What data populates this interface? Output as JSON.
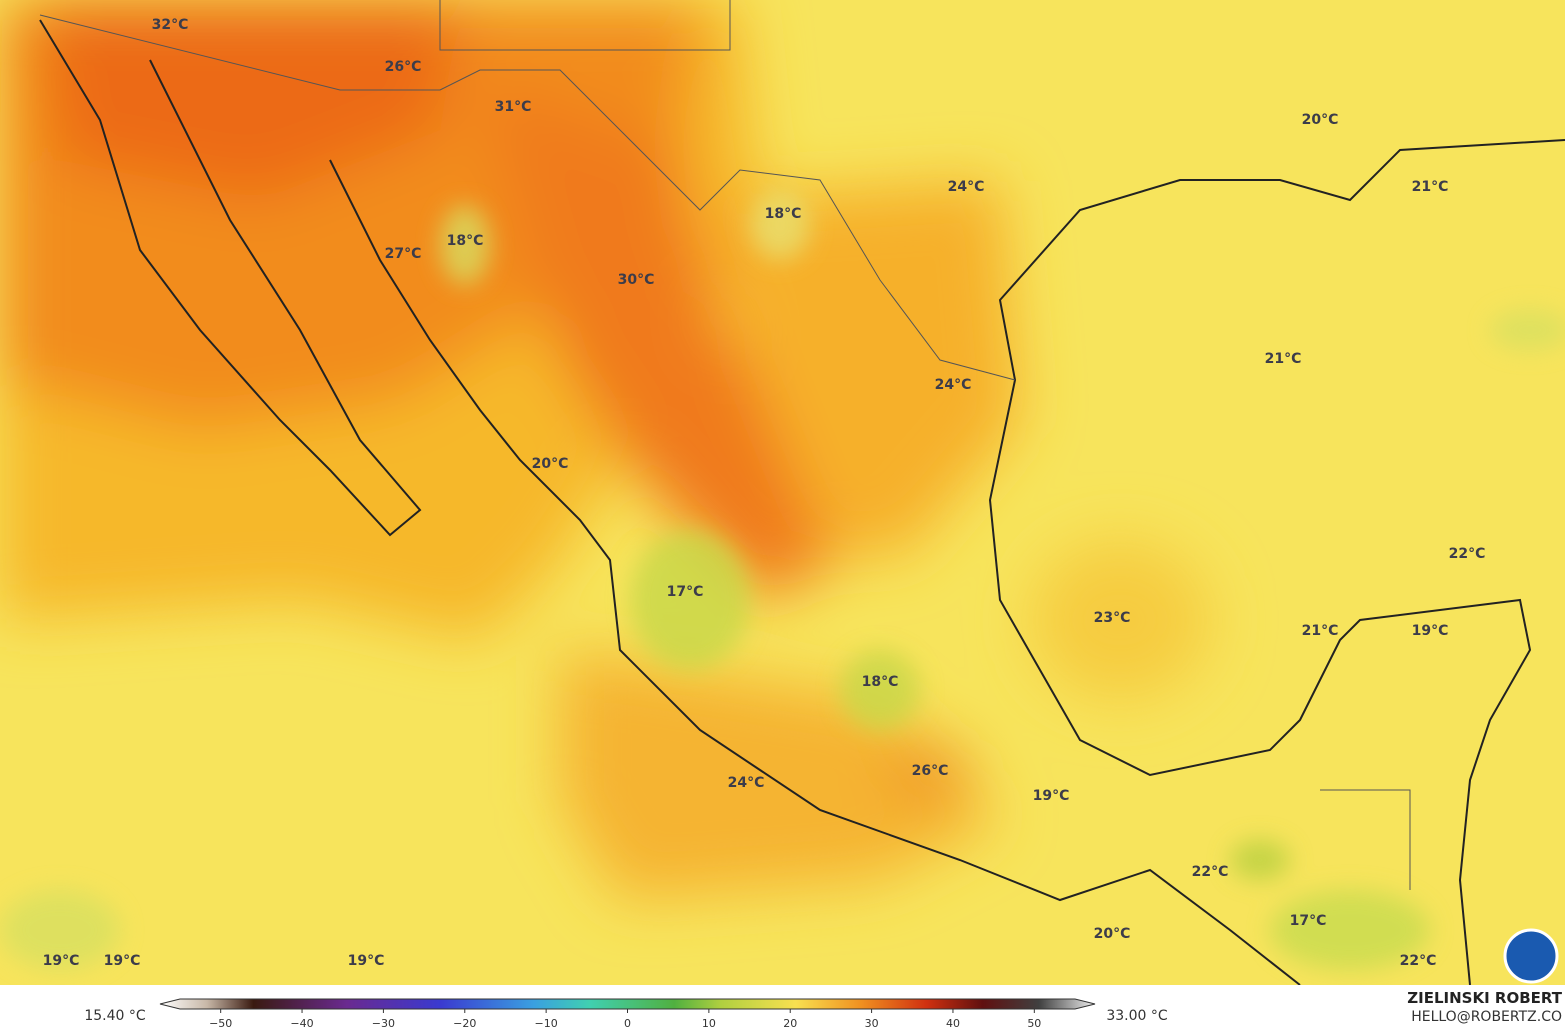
{
  "map": {
    "labels": [
      "32°C",
      "26°C",
      "31°C",
      "20°C",
      "24°C",
      "21°C",
      "18°C",
      "18°C",
      "27°C",
      "30°C",
      "21°C",
      "24°C",
      "20°C",
      "22°C",
      "17°C",
      "23°C",
      "21°C",
      "19°C",
      "18°C",
      "26°C",
      "24°C",
      "19°C",
      "22°C",
      "17°C",
      "20°C",
      "19°C",
      "19°C",
      "19°C",
      "22°C"
    ]
  },
  "colorbar": {
    "min_label": "15.40 °C",
    "max_label": "33.00 °C",
    "lim": [
      -55,
      55
    ],
    "ticks": [
      {
        "value": -50,
        "label": "−50"
      },
      {
        "value": -40,
        "label": "−40"
      },
      {
        "value": -30,
        "label": "−30"
      },
      {
        "value": -20,
        "label": "−20"
      },
      {
        "value": -10,
        "label": "−10"
      },
      0,
      10,
      20,
      30,
      40,
      50
    ]
  },
  "credit": {
    "name": "ZIELINSKI ROBERT",
    "contact": "HELLO@ROBERTZ.CO"
  }
}
